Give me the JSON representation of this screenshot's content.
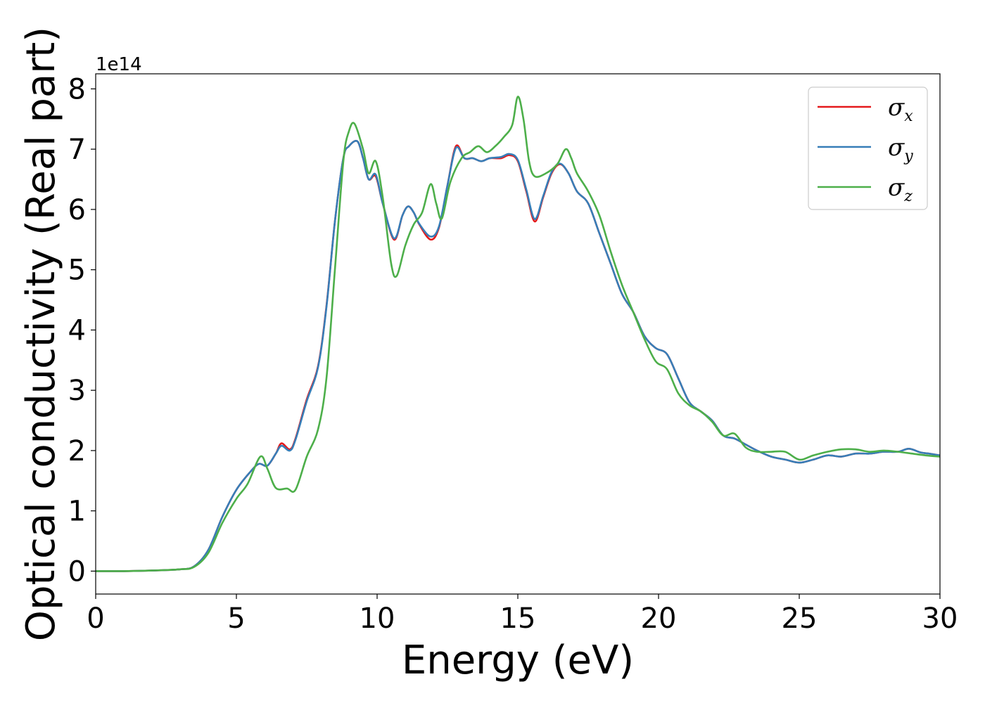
{
  "chart_data": {
    "type": "line",
    "title": "",
    "xlabel": "Energy (eV)",
    "ylabel": "Optical conductivity (Real part)",
    "y_offset_label": "1e14",
    "xlim": [
      0,
      30
    ],
    "ylim": [
      -0.38,
      8.25
    ],
    "xticks": [
      0,
      5,
      10,
      15,
      20,
      25,
      30
    ],
    "xtick_labels": [
      "0",
      "5",
      "10",
      "15",
      "20",
      "25",
      "30"
    ],
    "yticks": [
      0,
      1,
      2,
      3,
      4,
      5,
      6,
      7,
      8
    ],
    "ytick_labels": [
      "0",
      "1",
      "2",
      "3",
      "4",
      "5",
      "6",
      "7",
      "8"
    ],
    "grid": false,
    "legend_position": "top-right",
    "series": [
      {
        "name": "σx",
        "symbol": "σ",
        "subscript": "x",
        "color": "#e41a1c",
        "points": [
          [
            0,
            0
          ],
          [
            1,
            0
          ],
          [
            2,
            0.01
          ],
          [
            3,
            0.03
          ],
          [
            3.5,
            0.08
          ],
          [
            4,
            0.35
          ],
          [
            4.5,
            0.9
          ],
          [
            5,
            1.35
          ],
          [
            5.5,
            1.65
          ],
          [
            5.8,
            1.78
          ],
          [
            6.1,
            1.75
          ],
          [
            6.4,
            1.95
          ],
          [
            6.6,
            2.12
          ],
          [
            6.9,
            2.02
          ],
          [
            7.1,
            2.2
          ],
          [
            7.5,
            2.85
          ],
          [
            7.9,
            3.4
          ],
          [
            8.2,
            4.4
          ],
          [
            8.5,
            5.8
          ],
          [
            8.8,
            6.85
          ],
          [
            9.0,
            7.05
          ],
          [
            9.3,
            7.13
          ],
          [
            9.5,
            6.85
          ],
          [
            9.7,
            6.5
          ],
          [
            9.95,
            6.55
          ],
          [
            10.2,
            6.1
          ],
          [
            10.6,
            5.5
          ],
          [
            10.9,
            5.9
          ],
          [
            11.1,
            6.05
          ],
          [
            11.3,
            5.95
          ],
          [
            11.5,
            5.75
          ],
          [
            11.9,
            5.5
          ],
          [
            12.2,
            5.7
          ],
          [
            12.5,
            6.4
          ],
          [
            12.8,
            7.05
          ],
          [
            13.1,
            6.85
          ],
          [
            13.4,
            6.85
          ],
          [
            13.7,
            6.8
          ],
          [
            14.0,
            6.85
          ],
          [
            14.4,
            6.85
          ],
          [
            14.7,
            6.9
          ],
          [
            15.0,
            6.8
          ],
          [
            15.3,
            6.3
          ],
          [
            15.6,
            5.8
          ],
          [
            15.9,
            6.2
          ],
          [
            16.2,
            6.6
          ],
          [
            16.5,
            6.75
          ],
          [
            16.8,
            6.6
          ],
          [
            17.1,
            6.3
          ],
          [
            17.5,
            6.1
          ],
          [
            17.9,
            5.6
          ],
          [
            18.3,
            5.1
          ],
          [
            18.7,
            4.6
          ],
          [
            19.1,
            4.3
          ],
          [
            19.5,
            3.9
          ],
          [
            19.9,
            3.7
          ],
          [
            20.3,
            3.6
          ],
          [
            20.7,
            3.2
          ],
          [
            21.1,
            2.8
          ],
          [
            21.5,
            2.65
          ],
          [
            21.9,
            2.5
          ],
          [
            22.3,
            2.25
          ],
          [
            22.7,
            2.2
          ],
          [
            23.1,
            2.1
          ],
          [
            23.5,
            2.0
          ],
          [
            24.0,
            1.9
          ],
          [
            24.5,
            1.85
          ],
          [
            25.0,
            1.8
          ],
          [
            25.5,
            1.85
          ],
          [
            26.0,
            1.92
          ],
          [
            26.5,
            1.9
          ],
          [
            27.0,
            1.95
          ],
          [
            27.5,
            1.95
          ],
          [
            28.0,
            1.98
          ],
          [
            28.5,
            1.98
          ],
          [
            28.9,
            2.03
          ],
          [
            29.3,
            1.97
          ],
          [
            29.6,
            1.95
          ],
          [
            30,
            1.92
          ]
        ]
      },
      {
        "name": "σy",
        "symbol": "σ",
        "subscript": "y",
        "color": "#377eb8",
        "points": [
          [
            0,
            0
          ],
          [
            1,
            0
          ],
          [
            2,
            0.01
          ],
          [
            3,
            0.03
          ],
          [
            3.5,
            0.08
          ],
          [
            4,
            0.35
          ],
          [
            4.5,
            0.9
          ],
          [
            5,
            1.35
          ],
          [
            5.5,
            1.65
          ],
          [
            5.8,
            1.78
          ],
          [
            6.1,
            1.75
          ],
          [
            6.4,
            1.95
          ],
          [
            6.6,
            2.08
          ],
          [
            6.9,
            2.0
          ],
          [
            7.1,
            2.18
          ],
          [
            7.5,
            2.82
          ],
          [
            7.9,
            3.38
          ],
          [
            8.2,
            4.38
          ],
          [
            8.5,
            5.8
          ],
          [
            8.8,
            6.85
          ],
          [
            9.0,
            7.05
          ],
          [
            9.3,
            7.13
          ],
          [
            9.5,
            6.85
          ],
          [
            9.7,
            6.5
          ],
          [
            9.95,
            6.58
          ],
          [
            10.2,
            6.1
          ],
          [
            10.6,
            5.52
          ],
          [
            10.9,
            5.9
          ],
          [
            11.1,
            6.05
          ],
          [
            11.3,
            5.95
          ],
          [
            11.5,
            5.76
          ],
          [
            11.9,
            5.55
          ],
          [
            12.2,
            5.72
          ],
          [
            12.5,
            6.4
          ],
          [
            12.8,
            7.02
          ],
          [
            13.1,
            6.85
          ],
          [
            13.4,
            6.85
          ],
          [
            13.7,
            6.8
          ],
          [
            14.0,
            6.85
          ],
          [
            14.4,
            6.87
          ],
          [
            14.7,
            6.92
          ],
          [
            15.0,
            6.82
          ],
          [
            15.3,
            6.33
          ],
          [
            15.6,
            5.84
          ],
          [
            15.9,
            6.22
          ],
          [
            16.2,
            6.62
          ],
          [
            16.5,
            6.76
          ],
          [
            16.8,
            6.6
          ],
          [
            17.1,
            6.3
          ],
          [
            17.5,
            6.1
          ],
          [
            17.9,
            5.6
          ],
          [
            18.3,
            5.1
          ],
          [
            18.7,
            4.6
          ],
          [
            19.1,
            4.3
          ],
          [
            19.5,
            3.9
          ],
          [
            19.9,
            3.7
          ],
          [
            20.3,
            3.6
          ],
          [
            20.7,
            3.2
          ],
          [
            21.1,
            2.8
          ],
          [
            21.5,
            2.65
          ],
          [
            21.9,
            2.5
          ],
          [
            22.3,
            2.25
          ],
          [
            22.7,
            2.2
          ],
          [
            23.1,
            2.1
          ],
          [
            23.5,
            2.0
          ],
          [
            24.0,
            1.9
          ],
          [
            24.5,
            1.85
          ],
          [
            25.0,
            1.8
          ],
          [
            25.5,
            1.85
          ],
          [
            26.0,
            1.92
          ],
          [
            26.5,
            1.9
          ],
          [
            27.0,
            1.95
          ],
          [
            27.5,
            1.95
          ],
          [
            28.0,
            1.98
          ],
          [
            28.5,
            1.98
          ],
          [
            28.9,
            2.03
          ],
          [
            29.3,
            1.97
          ],
          [
            29.6,
            1.95
          ],
          [
            30,
            1.92
          ]
        ]
      },
      {
        "name": "σz",
        "symbol": "σ",
        "subscript": "z",
        "color": "#4daf4a",
        "points": [
          [
            0,
            0
          ],
          [
            1,
            0
          ],
          [
            2,
            0.01
          ],
          [
            3,
            0.03
          ],
          [
            3.5,
            0.07
          ],
          [
            4,
            0.3
          ],
          [
            4.5,
            0.8
          ],
          [
            5,
            1.2
          ],
          [
            5.4,
            1.45
          ],
          [
            5.85,
            1.9
          ],
          [
            6.1,
            1.7
          ],
          [
            6.4,
            1.38
          ],
          [
            6.8,
            1.37
          ],
          [
            7.1,
            1.35
          ],
          [
            7.5,
            1.9
          ],
          [
            7.9,
            2.35
          ],
          [
            8.2,
            3.2
          ],
          [
            8.5,
            5.0
          ],
          [
            8.8,
            6.8
          ],
          [
            9.0,
            7.3
          ],
          [
            9.2,
            7.42
          ],
          [
            9.5,
            7.0
          ],
          [
            9.7,
            6.6
          ],
          [
            9.95,
            6.8
          ],
          [
            10.2,
            6.2
          ],
          [
            10.5,
            5.1
          ],
          [
            10.7,
            4.9
          ],
          [
            11.0,
            5.4
          ],
          [
            11.3,
            5.75
          ],
          [
            11.6,
            5.95
          ],
          [
            11.9,
            6.42
          ],
          [
            12.1,
            6.1
          ],
          [
            12.3,
            5.85
          ],
          [
            12.6,
            6.45
          ],
          [
            13.0,
            6.85
          ],
          [
            13.3,
            6.95
          ],
          [
            13.6,
            7.05
          ],
          [
            13.9,
            6.95
          ],
          [
            14.2,
            7.05
          ],
          [
            14.5,
            7.2
          ],
          [
            14.8,
            7.4
          ],
          [
            15.0,
            7.87
          ],
          [
            15.2,
            7.5
          ],
          [
            15.4,
            6.8
          ],
          [
            15.6,
            6.55
          ],
          [
            16.0,
            6.6
          ],
          [
            16.4,
            6.75
          ],
          [
            16.7,
            7.0
          ],
          [
            16.9,
            6.85
          ],
          [
            17.1,
            6.6
          ],
          [
            17.5,
            6.3
          ],
          [
            17.9,
            5.9
          ],
          [
            18.3,
            5.3
          ],
          [
            18.7,
            4.75
          ],
          [
            19.1,
            4.3
          ],
          [
            19.5,
            3.85
          ],
          [
            19.9,
            3.48
          ],
          [
            20.3,
            3.35
          ],
          [
            20.7,
            2.95
          ],
          [
            21.1,
            2.75
          ],
          [
            21.5,
            2.65
          ],
          [
            21.9,
            2.48
          ],
          [
            22.3,
            2.25
          ],
          [
            22.7,
            2.28
          ],
          [
            23.1,
            2.05
          ],
          [
            23.5,
            1.98
          ],
          [
            24.0,
            1.98
          ],
          [
            24.5,
            1.98
          ],
          [
            25.0,
            1.85
          ],
          [
            25.5,
            1.92
          ],
          [
            26.0,
            1.98
          ],
          [
            26.5,
            2.02
          ],
          [
            27.0,
            2.02
          ],
          [
            27.5,
            1.98
          ],
          [
            28.0,
            2.0
          ],
          [
            28.5,
            1.98
          ],
          [
            29.0,
            1.95
          ],
          [
            29.5,
            1.92
          ],
          [
            30,
            1.9
          ]
        ]
      }
    ]
  }
}
